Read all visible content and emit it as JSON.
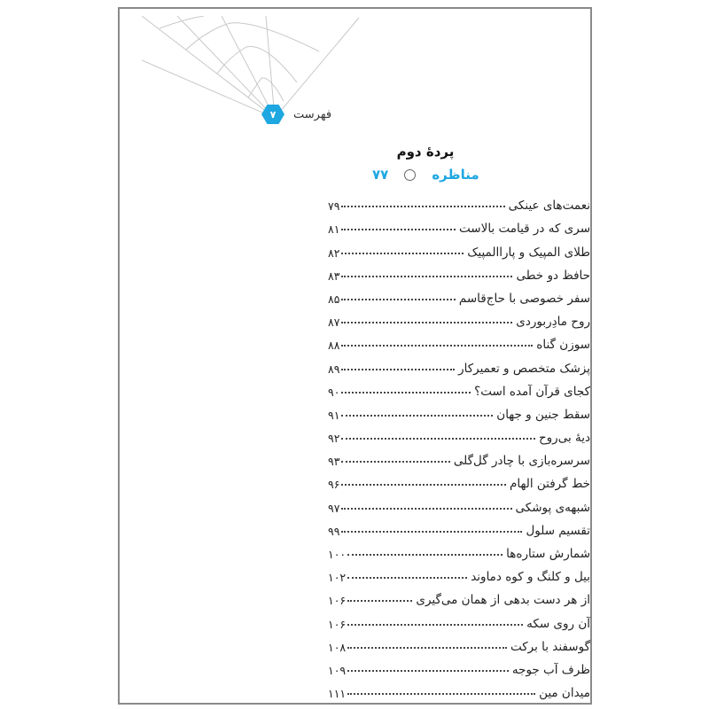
{
  "header": {
    "title": "فهرست",
    "page_number": "۷"
  },
  "section": {
    "title": "پردهٔ دوم",
    "subtitle": "مناظره",
    "subtitle_page": "۷۷"
  },
  "accent": "#1ea7e1",
  "entries": [
    {
      "title": "نعمت‌های عینکی",
      "page": "۷۹"
    },
    {
      "title": "سری که در قیامت بالاست",
      "page": "۸۱"
    },
    {
      "title": "طلای المپیک و پاراالمپیک",
      "page": "۸۲"
    },
    {
      "title": "حافظ دو خطی",
      "page": "۸۳"
    },
    {
      "title": "سفر خصوصی با حاج‌قاسم",
      "page": "۸۵"
    },
    {
      "title": "روح مادِربوردی",
      "page": "۸۷"
    },
    {
      "title": "سوزن گناه",
      "page": "۸۸"
    },
    {
      "title": "پزشک متخصص و تعمیرکار",
      "page": "۸۹"
    },
    {
      "title": "کجای قرآن آمده است؟",
      "page": "۹۰"
    },
    {
      "title": "سقط جنین و جهان",
      "page": "۹۱"
    },
    {
      "title": "دیهٔ بی‌روح",
      "page": "۹۲"
    },
    {
      "title": "سرسره‌بازی با چادر گل‌گلی",
      "page": "۹۳"
    },
    {
      "title": "خط گرفتن الهام",
      "page": "۹۶"
    },
    {
      "title": "شبهه‌ی پوشکی",
      "page": "۹۷"
    },
    {
      "title": "تقسیم سلول",
      "page": "۹۹"
    },
    {
      "title": "شمارش ستاره‌ها",
      "page": "۱۰۰"
    },
    {
      "title": "بیل و کلنگ و کوه دماوند",
      "page": "۱۰۲"
    },
    {
      "title": "از هر دست بدهی از همان می‌گیری",
      "page": "۱۰۶"
    },
    {
      "title": "آن روی سکه",
      "page": "۱۰۶"
    },
    {
      "title": "گوسفند با برکت",
      "page": "۱۰۸"
    },
    {
      "title": "ظرف آب جوجه",
      "page": "۱۰۹"
    },
    {
      "title": "میدان مین",
      "page": "۱۱۱"
    }
  ]
}
